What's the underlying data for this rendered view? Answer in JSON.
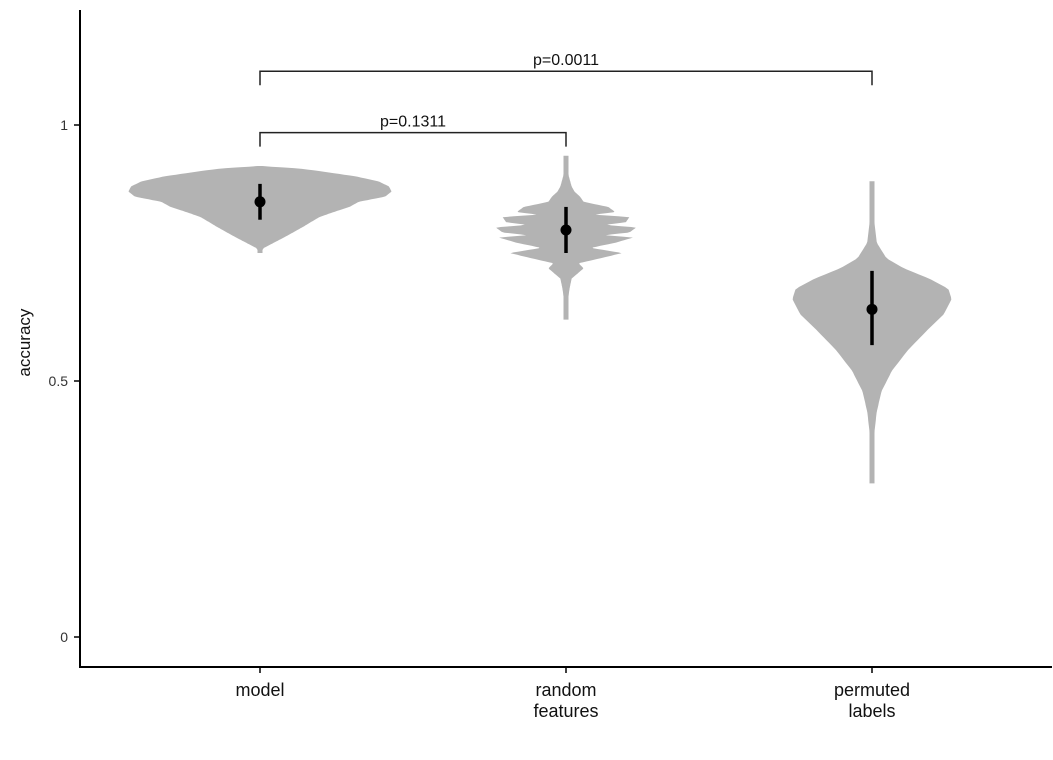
{
  "chart_data": {
    "type": "violin",
    "ylabel": "accuracy",
    "xlabel": "",
    "ylim": [
      -0.05,
      1.2
    ],
    "yticks": [
      {
        "value": 0,
        "label": "0"
      },
      {
        "value": 0.5,
        "label": "0.5"
      },
      {
        "value": 1,
        "label": "1"
      }
    ],
    "grid": false,
    "categories": [
      {
        "lines": [
          "model"
        ]
      },
      {
        "lines": [
          "random",
          "features"
        ]
      },
      {
        "lines": [
          "permuted",
          "labels"
        ]
      }
    ],
    "groups": [
      {
        "mean": 0.85,
        "err_low": 0.815,
        "err_high": 0.885,
        "violin": {
          "bottom": 0.75,
          "top": 0.92,
          "style": "smooth",
          "max_half_width": 0.43,
          "profile": [
            [
              0.75,
              0.0
            ],
            [
              0.76,
              0.03
            ],
            [
              0.78,
              0.18
            ],
            [
              0.8,
              0.32
            ],
            [
              0.82,
              0.45
            ],
            [
              0.83,
              0.56
            ],
            [
              0.84,
              0.68
            ],
            [
              0.85,
              0.75
            ],
            [
              0.86,
              0.95
            ],
            [
              0.87,
              1.0
            ],
            [
              0.88,
              0.98
            ],
            [
              0.89,
              0.9
            ],
            [
              0.9,
              0.72
            ],
            [
              0.91,
              0.45
            ],
            [
              0.915,
              0.3
            ],
            [
              0.92,
              0.0
            ]
          ]
        }
      },
      {
        "mean": 0.795,
        "err_low": 0.75,
        "err_high": 0.84,
        "violin": {
          "bottom": 0.62,
          "top": 0.94,
          "style": "jagged",
          "max_half_width": 0.23,
          "profile": [
            [
              0.62,
              0.0
            ],
            [
              0.64,
              0.01
            ],
            [
              0.66,
              0.03
            ],
            [
              0.68,
              0.05
            ],
            [
              0.7,
              0.08
            ],
            [
              0.72,
              0.25
            ],
            [
              0.73,
              0.18
            ],
            [
              0.74,
              0.5
            ],
            [
              0.75,
              0.8
            ],
            [
              0.76,
              0.35
            ],
            [
              0.77,
              0.7
            ],
            [
              0.78,
              0.95
            ],
            [
              0.785,
              0.55
            ],
            [
              0.79,
              0.9
            ],
            [
              0.8,
              1.0
            ],
            [
              0.805,
              0.55
            ],
            [
              0.81,
              0.85
            ],
            [
              0.82,
              0.9
            ],
            [
              0.825,
              0.4
            ],
            [
              0.83,
              0.7
            ],
            [
              0.84,
              0.6
            ],
            [
              0.85,
              0.25
            ],
            [
              0.86,
              0.2
            ],
            [
              0.87,
              0.12
            ],
            [
              0.88,
              0.08
            ],
            [
              0.9,
              0.04
            ],
            [
              0.92,
              0.02
            ],
            [
              0.94,
              0.0
            ]
          ]
        }
      },
      {
        "mean": 0.64,
        "err_low": 0.57,
        "err_high": 0.715,
        "violin": {
          "bottom": 0.3,
          "top": 0.89,
          "style": "smooth",
          "max_half_width": 0.26,
          "profile": [
            [
              0.3,
              0.0
            ],
            [
              0.33,
              0.01
            ],
            [
              0.36,
              0.015
            ],
            [
              0.4,
              0.03
            ],
            [
              0.44,
              0.06
            ],
            [
              0.48,
              0.12
            ],
            [
              0.52,
              0.25
            ],
            [
              0.56,
              0.45
            ],
            [
              0.6,
              0.7
            ],
            [
              0.63,
              0.9
            ],
            [
              0.66,
              1.0
            ],
            [
              0.68,
              0.96
            ],
            [
              0.7,
              0.72
            ],
            [
              0.72,
              0.4
            ],
            [
              0.74,
              0.18
            ],
            [
              0.77,
              0.06
            ],
            [
              0.81,
              0.03
            ],
            [
              0.85,
              0.015
            ],
            [
              0.89,
              0.0
            ]
          ]
        }
      }
    ],
    "brackets": [
      {
        "from": 0,
        "to": 1,
        "y": 0.985,
        "label": "p=0.1311"
      },
      {
        "from": 0,
        "to": 2,
        "y": 1.105,
        "label": "p=0.0011"
      }
    ]
  }
}
